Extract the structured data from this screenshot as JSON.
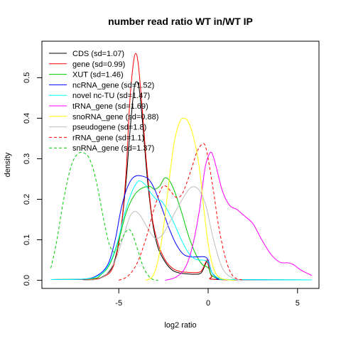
{
  "chart_data": {
    "type": "line",
    "title": "number read ratio WT in/WT IP",
    "xlabel": "log2 ratio",
    "ylabel": "density",
    "xlim": [
      -9.3,
      6.2
    ],
    "ylim": [
      -0.02,
      0.59
    ],
    "xticks": [
      -5,
      0,
      5
    ],
    "xtick_labels": [
      "-5",
      "0",
      "5"
    ],
    "yticks": [
      0.0,
      0.1,
      0.2,
      0.3,
      0.4,
      0.5
    ],
    "ytick_labels": [
      "0.0",
      "0.1",
      "0.2",
      "0.3",
      "0.4",
      "0.5"
    ],
    "grid": false,
    "legend_position": "top-left",
    "series": [
      {
        "name": "CDS (sd=1.07)",
        "color": "#000000",
        "dash": "solid",
        "points": [
          [
            -8.8,
            0.002
          ],
          [
            -6.5,
            0.003
          ],
          [
            -5.8,
            0.012
          ],
          [
            -5.3,
            0.04
          ],
          [
            -4.9,
            0.12
          ],
          [
            -4.6,
            0.24
          ],
          [
            -4.35,
            0.38
          ],
          [
            -4.15,
            0.47
          ],
          [
            -4.0,
            0.49
          ],
          [
            -3.85,
            0.47
          ],
          [
            -3.65,
            0.38
          ],
          [
            -3.4,
            0.25
          ],
          [
            -3.1,
            0.14
          ],
          [
            -2.8,
            0.08
          ],
          [
            -2.4,
            0.045
          ],
          [
            -2.0,
            0.025
          ],
          [
            -1.6,
            0.018
          ],
          [
            -1.2,
            0.016
          ],
          [
            -0.8,
            0.015
          ],
          [
            -0.4,
            0.018
          ],
          [
            -0.15,
            0.04
          ],
          [
            -0.05,
            0.047
          ],
          [
            0.05,
            0.03
          ],
          [
            0.2,
            0.01
          ],
          [
            0.6,
            0.002
          ],
          [
            5.8,
            0.001
          ]
        ]
      },
      {
        "name": "gene (sd=0.99)",
        "color": "#ff0000",
        "dash": "solid",
        "points": [
          [
            -8.8,
            0.002
          ],
          [
            -6.5,
            0.003
          ],
          [
            -5.8,
            0.01
          ],
          [
            -5.3,
            0.035
          ],
          [
            -4.9,
            0.12
          ],
          [
            -4.6,
            0.26
          ],
          [
            -4.4,
            0.43
          ],
          [
            -4.2,
            0.53
          ],
          [
            -4.05,
            0.56
          ],
          [
            -3.9,
            0.53
          ],
          [
            -3.7,
            0.43
          ],
          [
            -3.45,
            0.29
          ],
          [
            -3.15,
            0.16
          ],
          [
            -2.8,
            0.09
          ],
          [
            -2.4,
            0.05
          ],
          [
            -2.0,
            0.03
          ],
          [
            -1.6,
            0.022
          ],
          [
            -1.2,
            0.02
          ],
          [
            -0.8,
            0.019
          ],
          [
            -0.4,
            0.022
          ],
          [
            -0.15,
            0.043
          ],
          [
            -0.05,
            0.05
          ],
          [
            0.05,
            0.033
          ],
          [
            0.2,
            0.01
          ],
          [
            0.6,
            0.002
          ],
          [
            5.8,
            0.001
          ]
        ]
      },
      {
        "name": "XUT (sd=1.46)",
        "color": "#00cc00",
        "dash": "solid",
        "points": [
          [
            -8.8,
            0.002
          ],
          [
            -6.5,
            0.004
          ],
          [
            -6.0,
            0.014
          ],
          [
            -5.5,
            0.04
          ],
          [
            -5.0,
            0.1
          ],
          [
            -4.6,
            0.165
          ],
          [
            -4.2,
            0.205
          ],
          [
            -3.8,
            0.225
          ],
          [
            -3.3,
            0.232
          ],
          [
            -3.0,
            0.225
          ],
          [
            -2.7,
            0.233
          ],
          [
            -2.45,
            0.252
          ],
          [
            -2.2,
            0.248
          ],
          [
            -1.9,
            0.222
          ],
          [
            -1.5,
            0.17
          ],
          [
            -1.1,
            0.11
          ],
          [
            -0.7,
            0.065
          ],
          [
            -0.35,
            0.04
          ],
          [
            -0.1,
            0.034
          ],
          [
            0.05,
            0.028
          ],
          [
            0.2,
            0.012
          ],
          [
            0.6,
            0.004
          ],
          [
            1.2,
            0.002
          ],
          [
            5.8,
            0.001
          ]
        ]
      },
      {
        "name": "ncRNA_gene (sd=1.52)",
        "color": "#0000ff",
        "dash": "solid",
        "points": [
          [
            -8.8,
            0.002
          ],
          [
            -7.0,
            0.003
          ],
          [
            -6.2,
            0.012
          ],
          [
            -5.6,
            0.04
          ],
          [
            -5.2,
            0.1
          ],
          [
            -4.9,
            0.17
          ],
          [
            -4.6,
            0.22
          ],
          [
            -4.3,
            0.248
          ],
          [
            -4.0,
            0.258
          ],
          [
            -3.6,
            0.256
          ],
          [
            -3.3,
            0.248
          ],
          [
            -3.0,
            0.225
          ],
          [
            -2.6,
            0.18
          ],
          [
            -2.2,
            0.13
          ],
          [
            -1.8,
            0.09
          ],
          [
            -1.4,
            0.065
          ],
          [
            -1.0,
            0.058
          ],
          [
            -0.5,
            0.058
          ],
          [
            -0.2,
            0.058
          ],
          [
            0.0,
            0.05
          ],
          [
            0.2,
            0.02
          ],
          [
            0.5,
            0.006
          ],
          [
            1.0,
            0.002
          ],
          [
            5.8,
            0.001
          ]
        ]
      },
      {
        "name": "novel nc-TU (sd=1.47)",
        "color": "#00ffff",
        "dash": "solid",
        "points": [
          [
            -8.8,
            0.002
          ],
          [
            -7.0,
            0.003
          ],
          [
            -6.2,
            0.01
          ],
          [
            -5.6,
            0.035
          ],
          [
            -5.1,
            0.09
          ],
          [
            -4.7,
            0.16
          ],
          [
            -4.3,
            0.215
          ],
          [
            -4.0,
            0.24
          ],
          [
            -3.8,
            0.245
          ],
          [
            -3.5,
            0.235
          ],
          [
            -3.2,
            0.215
          ],
          [
            -2.9,
            0.2
          ],
          [
            -2.6,
            0.195
          ],
          [
            -2.3,
            0.175
          ],
          [
            -1.9,
            0.14
          ],
          [
            -1.5,
            0.1
          ],
          [
            -1.1,
            0.068
          ],
          [
            -0.7,
            0.052
          ],
          [
            -0.3,
            0.05
          ],
          [
            0.0,
            0.045
          ],
          [
            0.2,
            0.02
          ],
          [
            0.6,
            0.005
          ],
          [
            1.2,
            0.002
          ],
          [
            5.8,
            0.001
          ]
        ]
      },
      {
        "name": "tRNA_gene (sd=1.69)",
        "color": "#ff00ff",
        "dash": "solid",
        "points": [
          [
            -2.4,
            0.0
          ],
          [
            -1.8,
            0.008
          ],
          [
            -1.3,
            0.03
          ],
          [
            -0.9,
            0.08
          ],
          [
            -0.5,
            0.17
          ],
          [
            -0.2,
            0.27
          ],
          [
            0.0,
            0.305
          ],
          [
            0.2,
            0.315
          ],
          [
            0.45,
            0.28
          ],
          [
            0.8,
            0.22
          ],
          [
            1.2,
            0.185
          ],
          [
            1.6,
            0.175
          ],
          [
            2.0,
            0.16
          ],
          [
            2.5,
            0.14
          ],
          [
            3.0,
            0.1
          ],
          [
            3.5,
            0.065
          ],
          [
            4.0,
            0.045
          ],
          [
            4.5,
            0.043
          ],
          [
            4.8,
            0.038
          ],
          [
            5.2,
            0.025
          ],
          [
            5.8,
            0.012
          ]
        ]
      },
      {
        "name": "snoRNA_gene (sd=0.88)",
        "color": "#ffff00",
        "dash": "solid",
        "points": [
          [
            -3.5,
            0.0
          ],
          [
            -3.1,
            0.01
          ],
          [
            -2.8,
            0.05
          ],
          [
            -2.5,
            0.13
          ],
          [
            -2.2,
            0.24
          ],
          [
            -1.9,
            0.34
          ],
          [
            -1.6,
            0.39
          ],
          [
            -1.35,
            0.4
          ],
          [
            -1.1,
            0.39
          ],
          [
            -0.8,
            0.35
          ],
          [
            -0.5,
            0.28
          ],
          [
            -0.25,
            0.18
          ],
          [
            0.0,
            0.09
          ],
          [
            0.3,
            0.03
          ],
          [
            0.7,
            0.005
          ],
          [
            1.5,
            0.0
          ]
        ]
      },
      {
        "name": "pseudogene (sd=1.8)",
        "color": "#bebebe",
        "dash": "solid",
        "points": [
          [
            -7.0,
            0.0
          ],
          [
            -6.0,
            0.005
          ],
          [
            -5.3,
            0.04
          ],
          [
            -4.8,
            0.1
          ],
          [
            -4.4,
            0.155
          ],
          [
            -4.1,
            0.17
          ],
          [
            -3.8,
            0.16
          ],
          [
            -3.4,
            0.13
          ],
          [
            -3.0,
            0.105
          ],
          [
            -2.6,
            0.11
          ],
          [
            -2.2,
            0.14
          ],
          [
            -1.7,
            0.18
          ],
          [
            -1.3,
            0.21
          ],
          [
            -1.0,
            0.228
          ],
          [
            -0.7,
            0.23
          ],
          [
            -0.4,
            0.215
          ],
          [
            -0.1,
            0.18
          ],
          [
            0.3,
            0.1
          ],
          [
            0.8,
            0.03
          ],
          [
            1.4,
            0.005
          ],
          [
            2.0,
            0.0
          ]
        ]
      },
      {
        "name": "rRNA_gene (sd=1.1)",
        "color": "#ff0000",
        "dash": "dashed",
        "points": [
          [
            -5.0,
            0.0
          ],
          [
            -4.5,
            0.01
          ],
          [
            -4.0,
            0.04
          ],
          [
            -3.5,
            0.1
          ],
          [
            -3.0,
            0.18
          ],
          [
            -2.6,
            0.228
          ],
          [
            -2.35,
            0.232
          ],
          [
            -2.1,
            0.22
          ],
          [
            -1.8,
            0.205
          ],
          [
            -1.5,
            0.21
          ],
          [
            -1.2,
            0.24
          ],
          [
            -0.9,
            0.28
          ],
          [
            -0.6,
            0.32
          ],
          [
            -0.3,
            0.337
          ],
          [
            -0.15,
            0.33
          ],
          [
            0.0,
            0.3
          ],
          [
            0.3,
            0.22
          ],
          [
            0.6,
            0.13
          ],
          [
            1.0,
            0.05
          ],
          [
            1.4,
            0.01
          ],
          [
            2.0,
            0.0
          ]
        ]
      },
      {
        "name": "snRNA_gene (sd=1.37)",
        "color": "#00cc00",
        "dash": "dashed",
        "points": [
          [
            -8.8,
            0.03
          ],
          [
            -8.5,
            0.09
          ],
          [
            -8.2,
            0.17
          ],
          [
            -7.9,
            0.24
          ],
          [
            -7.6,
            0.29
          ],
          [
            -7.3,
            0.312
          ],
          [
            -7.0,
            0.315
          ],
          [
            -6.7,
            0.305
          ],
          [
            -6.4,
            0.27
          ],
          [
            -6.1,
            0.21
          ],
          [
            -5.8,
            0.14
          ],
          [
            -5.5,
            0.085
          ],
          [
            -5.2,
            0.07
          ],
          [
            -4.9,
            0.095
          ],
          [
            -4.6,
            0.12
          ],
          [
            -4.4,
            0.125
          ],
          [
            -4.2,
            0.11
          ],
          [
            -3.9,
            0.07
          ],
          [
            -3.6,
            0.03
          ],
          [
            -3.2,
            0.005
          ],
          [
            -2.8,
            0.0
          ]
        ]
      }
    ]
  }
}
